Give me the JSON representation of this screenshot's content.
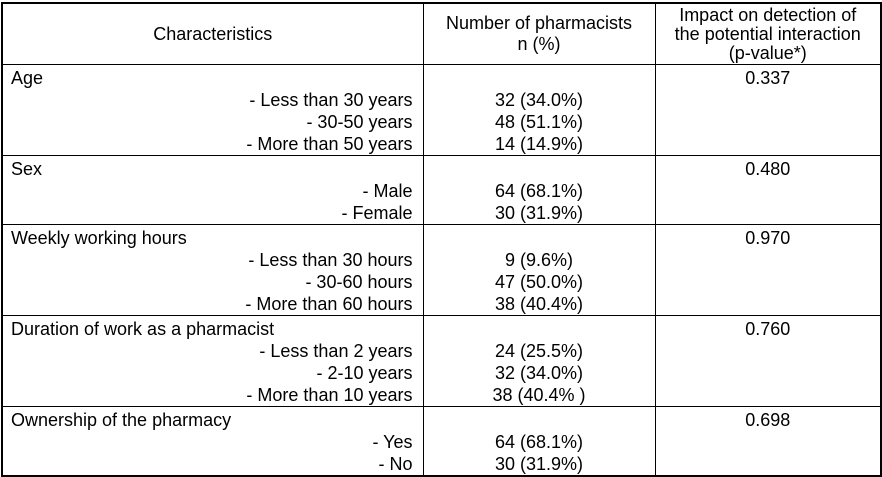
{
  "colors": {
    "border": "#000000",
    "text": "#000000",
    "background": "#ffffff"
  },
  "table": {
    "header": {
      "col1": [
        "Characteristics"
      ],
      "col2": [
        "Number of pharmacists",
        "n (%)"
      ],
      "col3": [
        "Impact on detection of",
        "the potential interaction",
        "(p-value*)"
      ]
    },
    "sections": [
      {
        "category": "Age",
        "p_value": "0.337",
        "rows": [
          {
            "label": "- Less than 30 years",
            "value": "32 (34.0%)"
          },
          {
            "label": "- 30-50 years",
            "value": "48 (51.1%)"
          },
          {
            "label": "- More than 50 years",
            "value": "14 (14.9%)"
          }
        ]
      },
      {
        "category": "Sex",
        "p_value": "0.480",
        "rows": [
          {
            "label": "- Male",
            "value": "64 (68.1%)"
          },
          {
            "label": "- Female",
            "value": "30 (31.9%)"
          }
        ]
      },
      {
        "category": "Weekly working hours",
        "p_value": "0.970",
        "rows": [
          {
            "label": "- Less than 30 hours",
            "value": "9 (9.6%)"
          },
          {
            "label": "- 30-60 hours",
            "value": "47 (50.0%)"
          },
          {
            "label": "- More than 60 hours",
            "value": "38 (40.4%)"
          }
        ]
      },
      {
        "category": "Duration of work as a pharmacist",
        "p_value": "0.760",
        "rows": [
          {
            "label": "- Less than 2 years",
            "value": "24 (25.5%)"
          },
          {
            "label": "- 2-10 years",
            "value": "32 (34.0%)"
          },
          {
            "label": "- More than 10 years",
            "value": "38 (40.4% )"
          }
        ]
      },
      {
        "category": "Ownership of the pharmacy",
        "p_value": "0.698",
        "rows": [
          {
            "label": "- Yes",
            "value": "64 (68.1%)"
          },
          {
            "label": "- No",
            "value": "30 (31.9%)"
          }
        ]
      }
    ]
  }
}
